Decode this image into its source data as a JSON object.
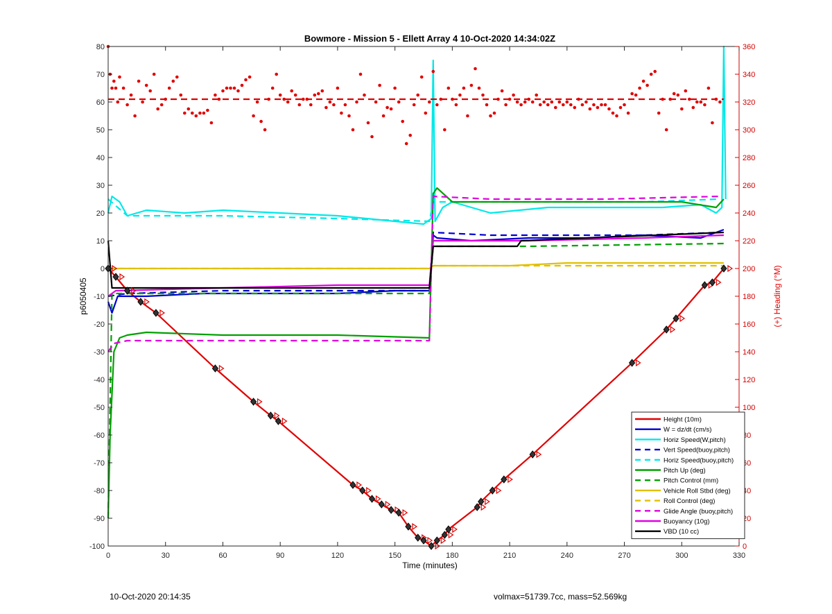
{
  "chart_data": {
    "type": "line",
    "title": "Bowmore - Mission 5 - Ellett Array 4 10-Oct-2020 14:34:02Z",
    "xlabel": "Time (minutes)",
    "ylabel": "p6050405",
    "y2label": "(+) Heading (°M)",
    "xlim": [
      0,
      330
    ],
    "ylim": [
      -100,
      80
    ],
    "y2lim": [
      0,
      360
    ],
    "xticks": [
      0,
      30,
      60,
      90,
      120,
      150,
      180,
      210,
      240,
      270,
      300,
      330
    ],
    "yticks": [
      -100,
      -90,
      -80,
      -70,
      -60,
      -50,
      -40,
      -30,
      -20,
      -10,
      0,
      10,
      20,
      30,
      40,
      50,
      60,
      70,
      80
    ],
    "y2ticks": [
      0,
      20,
      40,
      60,
      80,
      100,
      120,
      140,
      160,
      180,
      200,
      220,
      240,
      260,
      280,
      300,
      320,
      340,
      360
    ],
    "grid": false,
    "legend_position": "bottom-right",
    "series": [
      {
        "name": "Height (10m)",
        "color": "#e00000",
        "style": "solid",
        "axis": "left",
        "x": [
          0,
          4,
          10,
          17,
          25,
          56,
          76,
          85,
          89,
          128,
          133,
          138,
          143,
          148,
          152,
          157,
          162,
          165,
          169,
          172,
          176,
          178,
          193,
          195,
          201,
          207,
          222,
          274,
          292,
          297,
          312,
          316,
          322
        ],
        "y": [
          0,
          -3,
          -8,
          -12,
          -16,
          -36,
          -48,
          -53,
          -55,
          -78,
          -80,
          -83,
          -85,
          -87,
          -88,
          -93,
          -97,
          -98,
          -100,
          -98,
          -96,
          -94,
          -86,
          -84,
          -80,
          -76,
          -67,
          -34,
          -22,
          -18,
          -6,
          -5,
          0
        ]
      },
      {
        "name": "W = dz/dt (cm/s)",
        "color": "#0000d0",
        "style": "solid",
        "axis": "left",
        "x": [
          0,
          2,
          5,
          10,
          20,
          50,
          90,
          120,
          150,
          168,
          170,
          172,
          190,
          220,
          250,
          280,
          310,
          318,
          322
        ],
        "y": [
          -12,
          -16,
          -10,
          -10,
          -10,
          -9,
          -9,
          -9,
          -8,
          -8,
          12,
          11,
          10,
          11,
          11,
          12,
          11,
          13,
          14
        ]
      },
      {
        "name": "Horiz Speed(W,pitch)",
        "color": "#00e8e8",
        "style": "solid",
        "axis": "left",
        "x": [
          0,
          2,
          6,
          10,
          20,
          40,
          60,
          90,
          120,
          150,
          165,
          169,
          170,
          171,
          175,
          180,
          200,
          230,
          260,
          290,
          310,
          318,
          321,
          322,
          323
        ],
        "y": [
          20,
          26,
          24,
          19,
          21,
          20,
          21,
          20,
          19,
          17,
          16,
          18,
          75,
          17,
          22,
          24,
          20,
          22,
          22,
          22,
          23,
          20,
          22,
          80,
          25
        ]
      },
      {
        "name": "Vert Speed(buoy,pitch)",
        "color": "#0000d0",
        "style": "dashed",
        "axis": "left",
        "x": [
          0,
          10,
          60,
          120,
          168,
          170,
          200,
          240,
          280,
          320
        ],
        "y": [
          -10,
          -9,
          -8,
          -8,
          -8,
          13,
          12,
          12,
          12,
          13
        ]
      },
      {
        "name": "Horiz Speed(buoy,pitch)",
        "color": "#00e8e8",
        "style": "dashed",
        "axis": "left",
        "x": [
          0,
          5,
          10,
          60,
          120,
          168,
          170,
          200,
          240,
          280,
          320
        ],
        "y": [
          25,
          22,
          19,
          19,
          18,
          17,
          24,
          24,
          24,
          24,
          25
        ]
      },
      {
        "name": "Pitch Up (deg)",
        "color": "#00a000",
        "style": "solid",
        "axis": "left",
        "x": [
          0,
          1,
          3,
          6,
          10,
          20,
          60,
          120,
          168,
          170,
          172,
          180,
          240,
          300,
          318,
          322
        ],
        "y": [
          -90,
          -60,
          -30,
          -25,
          -24,
          -23,
          -24,
          -24,
          -25,
          27,
          29,
          24,
          24,
          24,
          22,
          25
        ]
      },
      {
        "name": "Pitch Control (mm)",
        "color": "#00a000",
        "style": "dashed",
        "axis": "left",
        "x": [
          0,
          2,
          5,
          168,
          170,
          220,
          322
        ],
        "y": [
          -90,
          -9,
          -9,
          -9,
          8,
          8,
          9
        ]
      },
      {
        "name": "Vehicle Roll Stbd (deg)",
        "color": "#e0c000",
        "style": "solid",
        "axis": "left",
        "x": [
          0,
          5,
          20,
          60,
          100,
          168,
          170,
          180,
          210,
          240,
          280,
          310,
          322
        ],
        "y": [
          0,
          0,
          0,
          0,
          0,
          0,
          1,
          1,
          1,
          2,
          2,
          2,
          2
        ]
      },
      {
        "name": "Roll Control (deg)",
        "color": "#e0c000",
        "style": "dashed",
        "axis": "left",
        "x": [
          0,
          5,
          60,
          120,
          168,
          170,
          240,
          322
        ],
        "y": [
          0,
          0,
          0,
          0,
          0,
          1,
          1,
          1
        ]
      },
      {
        "name": "Glide Angle (buoy,pitch)",
        "color": "#e000e0",
        "style": "dashed",
        "axis": "left",
        "x": [
          0,
          3,
          10,
          60,
          120,
          168,
          170,
          200,
          260,
          320
        ],
        "y": [
          -30,
          -27,
          -26,
          -26,
          -26,
          -26,
          26,
          25,
          25,
          26
        ]
      },
      {
        "name": "Buoyancy (10g)",
        "color": "#e000e0",
        "style": "solid",
        "axis": "left",
        "x": [
          0,
          4,
          60,
          120,
          168,
          170,
          180,
          220,
          280,
          322
        ],
        "y": [
          -10,
          -8,
          -7,
          -6,
          -6,
          10,
          10,
          10,
          11,
          12
        ]
      },
      {
        "name": "VBD (10 cc)",
        "color": "#000000",
        "style": "solid",
        "axis": "left",
        "x": [
          0,
          2,
          4,
          168,
          170,
          214,
          216,
          322
        ],
        "y": [
          10,
          -7,
          -7,
          -7,
          8,
          8,
          10,
          13
        ]
      },
      {
        "name": "",
        "color": "#e00000",
        "style": "dashed",
        "axis": "right",
        "x": [
          0,
          322
        ],
        "y": [
          322,
          322
        ]
      },
      {
        "name": "",
        "color": "#e00000",
        "style": "dots",
        "axis": "right",
        "x": [
          0,
          1,
          2,
          3,
          4,
          5,
          6,
          8,
          10,
          12,
          14,
          16,
          18,
          20,
          22,
          24,
          26,
          28,
          30,
          32,
          34,
          36,
          38,
          40,
          42,
          44,
          46,
          48,
          50,
          52,
          54,
          56,
          58,
          60,
          62,
          64,
          66,
          68,
          70,
          72,
          74,
          76,
          78,
          80,
          82,
          84,
          86,
          88,
          90,
          92,
          94,
          96,
          98,
          100,
          102,
          104,
          106,
          108,
          110,
          112,
          114,
          116,
          118,
          120,
          122,
          124,
          126,
          128,
          130,
          132,
          134,
          136,
          138,
          140,
          142,
          144,
          146,
          148,
          150,
          152,
          154,
          156,
          158,
          160,
          162,
          164,
          166,
          168,
          170,
          172,
          174,
          176,
          178,
          180,
          182,
          184,
          186,
          188,
          190,
          192,
          194,
          196,
          198,
          200,
          202,
          204,
          206,
          208,
          210,
          212,
          214,
          216,
          218,
          220,
          222,
          224,
          226,
          228,
          230,
          232,
          234,
          236,
          238,
          240,
          242,
          244,
          246,
          248,
          250,
          252,
          254,
          256,
          258,
          260,
          262,
          264,
          266,
          268,
          270,
          272,
          274,
          276,
          278,
          280,
          282,
          284,
          286,
          288,
          290,
          292,
          294,
          296,
          298,
          300,
          302,
          304,
          306,
          308,
          310,
          312,
          314,
          316,
          318,
          320
        ],
        "y": [
          360,
          340,
          330,
          335,
          330,
          320,
          338,
          330,
          318,
          325,
          310,
          335,
          320,
          332,
          328,
          340,
          315,
          318,
          322,
          330,
          335,
          338,
          325,
          312,
          315,
          312,
          310,
          312,
          312,
          314,
          305,
          325,
          322,
          328,
          330,
          330,
          330,
          328,
          332,
          336,
          338,
          310,
          320,
          306,
          300,
          322,
          330,
          340,
          325,
          322,
          320,
          328,
          325,
          318,
          322,
          322,
          318,
          325,
          326,
          328,
          316,
          320,
          318,
          330,
          312,
          318,
          310,
          300,
          320,
          340,
          325,
          305,
          295,
          320,
          332,
          310,
          316,
          315,
          330,
          320,
          306,
          290,
          296,
          318,
          325,
          338,
          312,
          320,
          342,
          318,
          322,
          300,
          330,
          322,
          318,
          325,
          330,
          310,
          332,
          344,
          330,
          325,
          318,
          310,
          312,
          322,
          328,
          318,
          322,
          325,
          320,
          318,
          320,
          322,
          320,
          325,
          318,
          320,
          318,
          320,
          316,
          320,
          318,
          320,
          318,
          316,
          322,
          318,
          320,
          315,
          318,
          316,
          318,
          318,
          315,
          312,
          310,
          316,
          318,
          312,
          326,
          325,
          330,
          335,
          332,
          340,
          342,
          312,
          322,
          300,
          322,
          326,
          325,
          315,
          328,
          322,
          316,
          320,
          320,
          318,
          330,
          305,
          322,
          320
        ]
      }
    ]
  },
  "footer": {
    "timestamp": "10-Oct-2020 20:14:35",
    "stats": "volmax=51739.7cc, mass=52.569kg"
  }
}
